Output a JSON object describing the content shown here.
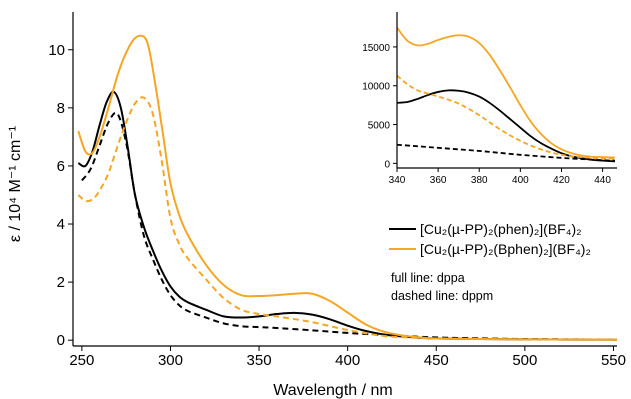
{
  "chart_data": [
    {
      "type": "line",
      "xlabel": "Wavelength  /  nm",
      "ylabel": "ε  /  10⁴ M⁻¹ cm⁻¹",
      "xlim": [
        245,
        552
      ],
      "ylim": [
        -0.2,
        11.3
      ],
      "xticks": [
        250,
        300,
        350,
        400,
        450,
        500,
        550
      ],
      "yticks": [
        0,
        2,
        4,
        6,
        8,
        10
      ],
      "grid": false,
      "legend_position": "middle-right",
      "legend": [
        {
          "label": "[Cu₂(µ-PP)₂(phen)₂](BF₄)₂",
          "color": "#000000",
          "dash": false
        },
        {
          "label": "[Cu₂(µ-PP)₂(Bphen)₂](BF₄)₂",
          "color": "#f5a623",
          "dash": false
        }
      ],
      "notes": [
        "full line: dppa",
        "dashed line: dppm"
      ],
      "series": [
        {
          "color": "#000000",
          "dash": false,
          "x": [
            248,
            252,
            256,
            260,
            264,
            268,
            272,
            276,
            280,
            285,
            290,
            295,
            300,
            305,
            310,
            320,
            330,
            340,
            350,
            360,
            370,
            380,
            390,
            400,
            410,
            420,
            430,
            440,
            450,
            475,
            500,
            525,
            552
          ],
          "y": [
            6.1,
            6.0,
            6.5,
            7.4,
            8.2,
            8.55,
            8.0,
            6.6,
            5.0,
            3.9,
            3.1,
            2.4,
            1.85,
            1.5,
            1.3,
            1.05,
            0.82,
            0.78,
            0.82,
            0.9,
            0.94,
            0.88,
            0.72,
            0.5,
            0.32,
            0.2,
            0.13,
            0.09,
            0.06,
            0.04,
            0.03,
            0.02,
            0.02
          ]
        },
        {
          "color": "#000000",
          "dash": true,
          "x": [
            250,
            255,
            260,
            265,
            270,
            275,
            280,
            285,
            290,
            295,
            300,
            305,
            310,
            320,
            330,
            340,
            350,
            360,
            380,
            400,
            420,
            440,
            460,
            500,
            552
          ],
          "y": [
            5.5,
            5.9,
            6.7,
            7.5,
            7.8,
            6.8,
            5.0,
            3.6,
            2.8,
            2.1,
            1.55,
            1.2,
            1.0,
            0.78,
            0.58,
            0.48,
            0.45,
            0.42,
            0.34,
            0.25,
            0.18,
            0.12,
            0.08,
            0.04,
            0.02
          ]
        },
        {
          "color": "#f5a623",
          "dash": false,
          "x": [
            248,
            252,
            256,
            260,
            265,
            270,
            275,
            280,
            285,
            288,
            292,
            296,
            300,
            305,
            310,
            320,
            330,
            340,
            350,
            360,
            370,
            380,
            390,
            400,
            410,
            420,
            430,
            440,
            450,
            475,
            500,
            525,
            552
          ],
          "y": [
            7.2,
            6.5,
            6.45,
            7.0,
            8.0,
            9.1,
            9.9,
            10.4,
            10.45,
            10.0,
            8.6,
            7.0,
            5.4,
            4.3,
            3.6,
            2.6,
            1.9,
            1.55,
            1.52,
            1.55,
            1.6,
            1.6,
            1.35,
            0.95,
            0.55,
            0.3,
            0.17,
            0.1,
            0.06,
            0.04,
            0.03,
            0.02,
            0.02
          ]
        },
        {
          "color": "#f5a623",
          "dash": true,
          "x": [
            248,
            252,
            256,
            260,
            265,
            270,
            275,
            280,
            285,
            290,
            295,
            300,
            305,
            310,
            320,
            330,
            340,
            350,
            360,
            380,
            400,
            420,
            440,
            460,
            500,
            552
          ],
          "y": [
            5.0,
            4.8,
            4.85,
            5.15,
            5.75,
            6.65,
            7.5,
            8.15,
            8.35,
            7.8,
            6.2,
            4.2,
            3.3,
            2.8,
            2.1,
            1.45,
            1.05,
            0.9,
            0.82,
            0.62,
            0.35,
            0.15,
            0.08,
            0.05,
            0.03,
            0.02
          ]
        }
      ]
    },
    {
      "type": "line",
      "xlim": [
        340,
        447
      ],
      "ylim": [
        -600,
        19500
      ],
      "xticks": [
        340,
        360,
        380,
        400,
        420,
        440
      ],
      "yticks": [
        0,
        5000,
        10000,
        15000
      ],
      "grid": false,
      "series": [
        {
          "color": "#000000",
          "dash": false,
          "x": [
            340,
            345,
            350,
            355,
            360,
            365,
            370,
            375,
            380,
            385,
            390,
            395,
            400,
            405,
            410,
            415,
            420,
            425,
            430,
            435,
            440,
            446
          ],
          "y": [
            7800,
            7900,
            8300,
            8800,
            9200,
            9400,
            9350,
            9100,
            8600,
            7800,
            6800,
            5700,
            4600,
            3500,
            2600,
            1900,
            1300,
            900,
            650,
            450,
            350,
            250
          ]
        },
        {
          "color": "#000000",
          "dash": true,
          "x": [
            340,
            350,
            360,
            370,
            380,
            390,
            400,
            410,
            420,
            430,
            440,
            446
          ],
          "y": [
            2400,
            2200,
            2000,
            1800,
            1600,
            1350,
            1100,
            900,
            700,
            550,
            400,
            350
          ]
        },
        {
          "color": "#f5a623",
          "dash": false,
          "x": [
            340,
            345,
            350,
            355,
            360,
            365,
            370,
            375,
            380,
            385,
            390,
            395,
            400,
            405,
            410,
            415,
            420,
            425,
            430,
            435,
            440,
            446
          ],
          "y": [
            17500,
            15800,
            15200,
            15400,
            15900,
            16300,
            16500,
            16300,
            15500,
            14000,
            12000,
            9800,
            7500,
            5400,
            3800,
            2600,
            1800,
            1300,
            1000,
            850,
            800,
            750
          ]
        },
        {
          "color": "#f5a623",
          "dash": true,
          "x": [
            340,
            345,
            350,
            355,
            360,
            365,
            370,
            375,
            380,
            385,
            390,
            395,
            400,
            405,
            410,
            415,
            420,
            425,
            430,
            435,
            440,
            446
          ],
          "y": [
            11300,
            10200,
            9400,
            9000,
            8600,
            8200,
            7700,
            7000,
            6200,
            5300,
            4400,
            3600,
            2900,
            2300,
            1800,
            1400,
            1100,
            900,
            800,
            700,
            650,
            600
          ]
        }
      ]
    }
  ]
}
